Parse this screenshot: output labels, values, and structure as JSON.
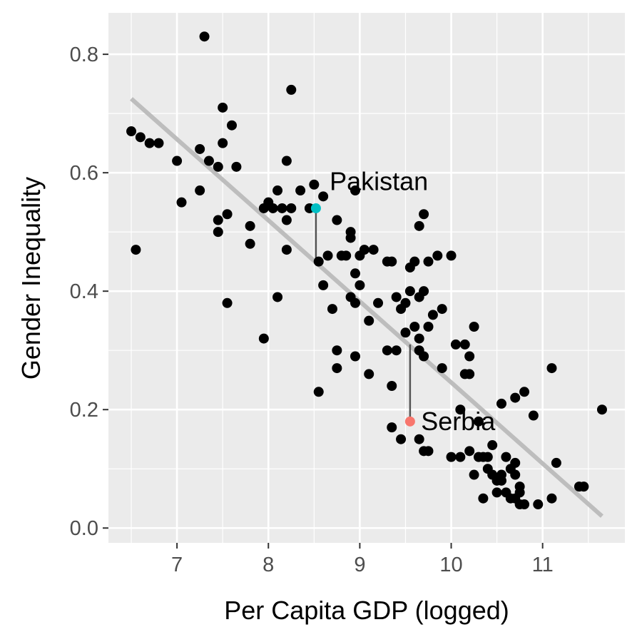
{
  "chart_data": {
    "type": "scatter",
    "xlabel": "Per Capita GDP (logged)",
    "ylabel": "Gender Inequality",
    "xlim": [
      6.25,
      11.9
    ],
    "ylim": [
      -0.025,
      0.87
    ],
    "x_ticks": [
      7,
      8,
      9,
      10,
      11
    ],
    "y_ticks": [
      0.0,
      0.2,
      0.4,
      0.6,
      0.8
    ],
    "x_tick_labels": [
      "7",
      "8",
      "9",
      "10",
      "11"
    ],
    "y_tick_labels": [
      "0.0",
      "0.2",
      "0.4",
      "0.6",
      "0.8"
    ],
    "grid": true,
    "background": "#ebebeb",
    "point_color": "#000000",
    "trend_line": {
      "x": [
        6.5,
        11.65
      ],
      "y": [
        0.725,
        0.02
      ],
      "color": "#bdbdbd"
    },
    "points": [
      [
        7.3,
        0.83
      ],
      [
        8.25,
        0.74
      ],
      [
        7.5,
        0.71
      ],
      [
        7.6,
        0.68
      ],
      [
        6.5,
        0.67
      ],
      [
        6.6,
        0.66
      ],
      [
        6.7,
        0.65
      ],
      [
        6.8,
        0.65
      ],
      [
        7.0,
        0.62
      ],
      [
        7.25,
        0.64
      ],
      [
        7.35,
        0.62
      ],
      [
        7.45,
        0.61
      ],
      [
        7.5,
        0.65
      ],
      [
        7.65,
        0.61
      ],
      [
        8.2,
        0.62
      ],
      [
        8.45,
        0.54
      ],
      [
        8.6,
        0.56
      ],
      [
        8.5,
        0.58
      ],
      [
        8.0,
        0.55
      ],
      [
        7.95,
        0.54
      ],
      [
        8.05,
        0.54
      ],
      [
        8.15,
        0.54
      ],
      [
        8.25,
        0.54
      ],
      [
        8.1,
        0.57
      ],
      [
        8.35,
        0.57
      ],
      [
        7.05,
        0.55
      ],
      [
        7.25,
        0.57
      ],
      [
        7.45,
        0.52
      ],
      [
        7.55,
        0.53
      ],
      [
        7.45,
        0.5
      ],
      [
        7.8,
        0.51
      ],
      [
        8.2,
        0.52
      ],
      [
        6.55,
        0.47
      ],
      [
        7.8,
        0.48
      ],
      [
        8.2,
        0.47
      ],
      [
        7.55,
        0.38
      ],
      [
        7.95,
        0.32
      ],
      [
        8.1,
        0.39
      ],
      [
        8.55,
        0.45
      ],
      [
        8.6,
        0.41
      ],
      [
        8.65,
        0.46
      ],
      [
        8.75,
        0.52
      ],
      [
        8.8,
        0.46
      ],
      [
        8.9,
        0.5
      ],
      [
        8.9,
        0.49
      ],
      [
        8.85,
        0.46
      ],
      [
        8.95,
        0.57
      ],
      [
        9.0,
        0.46
      ],
      [
        9.05,
        0.47
      ],
      [
        9.15,
        0.47
      ],
      [
        8.95,
        0.43
      ],
      [
        8.9,
        0.39
      ],
      [
        9.0,
        0.41
      ],
      [
        8.95,
        0.38
      ],
      [
        9.1,
        0.35
      ],
      [
        9.2,
        0.38
      ],
      [
        9.3,
        0.45
      ],
      [
        9.35,
        0.45
      ],
      [
        9.4,
        0.39
      ],
      [
        9.45,
        0.37
      ],
      [
        9.5,
        0.38
      ],
      [
        9.5,
        0.33
      ],
      [
        9.55,
        0.44
      ],
      [
        9.6,
        0.45
      ],
      [
        9.65,
        0.39
      ],
      [
        9.7,
        0.4
      ],
      [
        9.55,
        0.4
      ],
      [
        8.7,
        0.37
      ],
      [
        8.75,
        0.3
      ],
      [
        8.75,
        0.27
      ],
      [
        8.95,
        0.29
      ],
      [
        9.1,
        0.26
      ],
      [
        9.3,
        0.3
      ],
      [
        9.4,
        0.3
      ],
      [
        9.35,
        0.24
      ],
      [
        9.6,
        0.34
      ],
      [
        9.65,
        0.32
      ],
      [
        9.7,
        0.29
      ],
      [
        9.75,
        0.34
      ],
      [
        9.8,
        0.36
      ],
      [
        9.85,
        0.46
      ],
      [
        9.9,
        0.37
      ],
      [
        10.0,
        0.46
      ],
      [
        9.7,
        0.53
      ],
      [
        9.65,
        0.51
      ],
      [
        9.75,
        0.45
      ],
      [
        9.65,
        0.3
      ],
      [
        9.9,
        0.27
      ],
      [
        10.05,
        0.31
      ],
      [
        10.15,
        0.31
      ],
      [
        10.2,
        0.29
      ],
      [
        10.25,
        0.34
      ],
      [
        10.15,
        0.26
      ],
      [
        10.2,
        0.26
      ],
      [
        10.3,
        0.18
      ],
      [
        10.1,
        0.2
      ],
      [
        8.55,
        0.23
      ],
      [
        9.35,
        0.17
      ],
      [
        9.45,
        0.15
      ],
      [
        9.65,
        0.15
      ],
      [
        9.7,
        0.13
      ],
      [
        9.75,
        0.13
      ],
      [
        10.0,
        0.12
      ],
      [
        10.1,
        0.12
      ],
      [
        10.2,
        0.13
      ],
      [
        10.25,
        0.09
      ],
      [
        10.3,
        0.12
      ],
      [
        10.35,
        0.12
      ],
      [
        10.4,
        0.12
      ],
      [
        10.45,
        0.14
      ],
      [
        10.4,
        0.1
      ],
      [
        10.45,
        0.09
      ],
      [
        10.5,
        0.08
      ],
      [
        10.55,
        0.09
      ],
      [
        10.6,
        0.12
      ],
      [
        10.65,
        0.1
      ],
      [
        10.7,
        0.11
      ],
      [
        10.7,
        0.09
      ],
      [
        10.6,
        0.06
      ],
      [
        10.65,
        0.05
      ],
      [
        10.7,
        0.05
      ],
      [
        10.75,
        0.04
      ],
      [
        10.8,
        0.04
      ],
      [
        10.75,
        0.06
      ],
      [
        10.75,
        0.07
      ],
      [
        10.5,
        0.06
      ],
      [
        10.35,
        0.05
      ],
      [
        10.55,
        0.08
      ],
      [
        10.7,
        0.22
      ],
      [
        10.8,
        0.23
      ],
      [
        10.55,
        0.21
      ],
      [
        10.9,
        0.19
      ],
      [
        10.95,
        0.04
      ],
      [
        11.1,
        0.05
      ],
      [
        11.1,
        0.27
      ],
      [
        11.15,
        0.11
      ],
      [
        11.4,
        0.07
      ],
      [
        11.45,
        0.07
      ],
      [
        11.65,
        0.2
      ]
    ],
    "highlighted": [
      {
        "label": "Pakistan",
        "x": 8.52,
        "y": 0.54,
        "fitted": 0.455,
        "color": "#00bfc4",
        "label_dx": 0.15,
        "label_dy": 0.045
      },
      {
        "label": "Serbia",
        "x": 9.55,
        "y": 0.18,
        "fitted": 0.31,
        "color": "#f8766d",
        "label_dx": 0.12,
        "label_dy": 0.0
      }
    ],
    "residual_line_color": "#555555"
  }
}
